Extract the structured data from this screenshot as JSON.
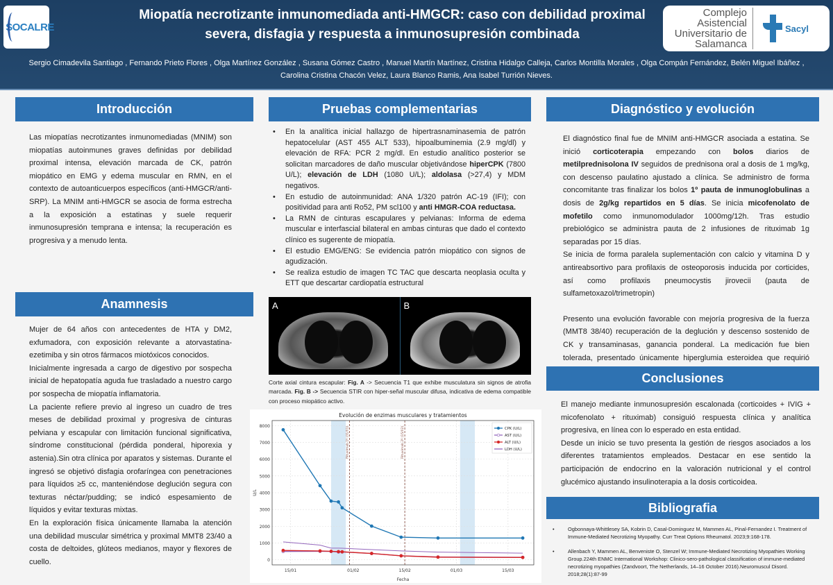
{
  "header": {
    "title": "Miopatía necrotizante inmunomediada anti-HMGCR: caso con debilidad proximal severa, disfagia y respuesta a inmunosupresión combinada",
    "authors_line1": "Sergio Cimadevila Santiago , Fernando Prieto Flores , Olga Martínez González , Susana Gómez Castro , Manuel Martín Martínez, Cristina Hidalgo Calleja, Carlos Montilla Morales , Olga Compán Fernández, Belén Miguel Ibáñez ,",
    "authors_line2": "Carolina Cristina Chacón Velez, Laura Blanco Ramis, Ana Isabel Turrión Nieves.",
    "logo_left": "SOCALRE",
    "logo_right": "Complejo Asistencial Universitario de Salamanca",
    "logo_right_brand": "Sacyl"
  },
  "colors": {
    "header_bg": "#1f4266",
    "section_bar": "#2e72b2",
    "cpk": "#1f77b4",
    "ast": "#9467bd",
    "alt": "#d62728",
    "ldh": "#9467bd",
    "shade": "#d6e8f5",
    "vline": "#8c564b"
  },
  "intro": {
    "heading": "Introducción",
    "text": "Las miopatías necrotizantes inmunomediadas (MNIM) son miopatías autoinmunes graves definidas por debilidad proximal intensa, elevación marcada de CK, patrón miopático en EMG  y edema muscular en RMN, en el contexto de autoanticuerpos específicos (anti-HMGCR/anti-SRP). La MNIM anti-HMGCR se asocia de forma estrecha a la exposición a estatinas y suele requerir inmunosupresión temprana e intensa; la recuperación es progresiva y a menudo lenta."
  },
  "anamnesis": {
    "heading": "Anamnesis",
    "paragraphs": [
      "Mujer de 64 años con antecedentes de HTA y DM2, exfumadora, con exposición relevante a atorvastatina-ezetimiba y sin otros fármacos miotóxicos conocidos.",
      "Inicialmente ingresada a cargo de digestivo por sospecha inicial de hepatopatía aguda fue trasladado a nuestro cargo por sospecha de miopatía inflamatoria.",
      "La paciente refiere previo al ingreso un cuadro de tres meses de debilidad proximal y  progresiva de cinturas pelviana y escapular con limitación funcional significativa, síndrome constitucional (pérdida ponderal, hiporexia y astenia).Sin otra clínica por aparatos y sistemas.  Durante el ingresó se objetivó disfagia orofaríngea con penetraciones para líquidos ≥5 cc, manteniéndose deglución segura con texturas néctar/pudding; se indicó espesamiento de líquidos y evitar texturas mixtas.",
      "En la exploración física únicamente llamaba la atención una debilidad muscular simétrica y proximal MMT8 23/40 a costa de deltoides, glúteos medianos, mayor y flexores de cuello."
    ]
  },
  "pruebas": {
    "heading": "Pruebas complementarias",
    "items": [
      [
        {
          "t": "En la analítica inicial hallazgo de hipertrasnaminasemia de patrón hepatocelular (AST 455 ALT 533), hipoalbuminemia  (2.9 mg/dl) y elevación de RFA: PCR 2 mg/dl. En estudio analítico posterior se solicitan marcadores de daño muscular objetivándose "
        },
        {
          "t": "hiperCPK",
          "b": true
        },
        {
          "t": " (7800 U/L); "
        },
        {
          "t": "elevación de LDH",
          "b": true
        },
        {
          "t": " (1080 U/L); "
        },
        {
          "t": "aldolasa",
          "b": true
        },
        {
          "t": " (>27,4) y MDM negativos."
        }
      ],
      [
        {
          "t": "En estudio de autoinmunidad: ANA 1/320 patrón AC-19 (IFI); con positividad para anti Ro52, PM scl100 y "
        },
        {
          "t": "anti HMGR-COA reductasa.",
          "b": true
        }
      ],
      [
        {
          "t": "La RMN de cinturas escapulares y pelvianas: Informa de edema muscular e interfascial bilateral en ambas cinturas que dado el contexto clínico es sugerente de miopatía."
        }
      ],
      [
        {
          "t": "El  estudio EMG/ENG: Se evidencia patrón miopático con signos de agudización."
        }
      ],
      [
        {
          "t": "Se realiza estudio de imagen TC TAC que descarta neoplasia oculta y ETT que descartar cardiopatía estructural"
        }
      ]
    ],
    "figure_label_a": "A",
    "figure_label_b": "B",
    "caption": [
      {
        "t": "Corte axial cintura escapular: "
      },
      {
        "t": "Fig. A",
        "b": true
      },
      {
        "t": " -> Secuencia T1 que exhibe musculatura sin signos de atrofia marcada. "
      },
      {
        "t": "Fig. B ->",
        "b": true
      },
      {
        "t": " Secuencia STIR con hiper-señal muscular difusa, indicativa de edema compatible con proceso miopático activo."
      }
    ]
  },
  "chart_data": {
    "type": "line",
    "title": "Evolución de enzimas musculares y tratamientos",
    "xlabel": "Fecha",
    "ylabel": "U/L",
    "xlim": [
      "10/01",
      "22/03"
    ],
    "ylim": [
      -300,
      8300
    ],
    "x_ticks": [
      "15/01",
      "01/02",
      "15/02",
      "01/03",
      "15/03"
    ],
    "y_ticks": [
      0,
      1000,
      2000,
      3000,
      4000,
      5000,
      6000,
      7000,
      8000
    ],
    "grid": true,
    "legend_position": "top-right",
    "x": [
      "13/01",
      "23/01",
      "26/01",
      "28/01",
      "29/01",
      "06/02",
      "14/02",
      "24/02",
      "19/03"
    ],
    "series": [
      {
        "name": "CPK (U/L)",
        "color": "#1f77b4",
        "marker": "filled-circle",
        "values": [
          7750,
          4420,
          3500,
          3450,
          3100,
          2010,
          1350,
          1300,
          1300
        ]
      },
      {
        "name": "AST (U/L)",
        "color": "#9467bd",
        "marker": "circle",
        "values": [
          500,
          510,
          500,
          470,
          470,
          380,
          240,
          170,
          150
        ]
      },
      {
        "name": "ALT (U/L)",
        "color": "#d62728",
        "marker": "filled-circle",
        "values": [
          560,
          530,
          510,
          490,
          480,
          380,
          240,
          160,
          140
        ]
      },
      {
        "name": "LDH (U/L)",
        "color": "#9467bd",
        "marker": "none",
        "values": [
          1070,
          880,
          700,
          700,
          690,
          610,
          530,
          460,
          400
        ]
      }
    ],
    "shaded_periods": [
      [
        "26/01",
        "30/01"
      ],
      [
        "02/03",
        "06/03"
      ]
    ],
    "vlines": [
      {
        "date": "31/01",
        "label": "Rituximab 1º (31/01)"
      },
      {
        "date": "15/02",
        "label": "Rituximab 2º (15/02)"
      }
    ]
  },
  "diagnostico": {
    "heading": "Diagnóstico y  evolución",
    "paragraphs": [
      [
        {
          "t": "El diagnóstico final fue de MNIM anti-HMGCR asociada a estatina. Se inició "
        },
        {
          "t": "corticoterapia",
          "b": true
        },
        {
          "t": " empezando con "
        },
        {
          "t": "bolos",
          "b": true
        },
        {
          "t": " diarios de "
        },
        {
          "t": "metilprednisolona IV",
          "b": true
        },
        {
          "t": " seguidos de prednisona oral a dosis de 1 mg/kg, con descenso paulatino ajustado a clínica. Se administro de forma concomitante tras finalizar los bolos "
        },
        {
          "t": "1º pauta de inmunoglobulinas",
          "b": true
        },
        {
          "t": " a dosis de "
        },
        {
          "t": "2g/kg repartidos en 5 días",
          "b": true
        },
        {
          "t": ". Se inicia "
        },
        {
          "t": "micofenolato de mofetilo",
          "b": true
        },
        {
          "t": " como inmunomodulador 1000mg/12h. Tras estudio prebiológico se administra pauta de 2 infusiones de rituximab 1g separadas por 15 días."
        }
      ],
      [
        {
          "t": "Se inicia de forma paralela suplementación con calcio y vitamina D y antireabsortivo para profilaxis de osteoporosis inducida por corticides, así como profilaxis pneumocystis jirovecii (pauta de sulfametoxazol/trimetropin)"
        }
      ],
      [
        {
          "t": "Presento una evolución favorable con mejoría progresiva de la fuerza (MMT8 38/40) recuperación de la deglución  y descenso sostenido de CK y transaminasas, ganancia ponderal. La medicación fue bien tolerada, presentado únicamente hiperglumia esteroidea que requirió manejo por parte de endocrinología con insulinoterapia de acción intermedia."
        }
      ]
    ]
  },
  "conclusiones": {
    "heading": "Conclusiones",
    "paragraphs": [
      "El manejo mediante inmunosupresión escalonada (corticoides + IVIG + micofenolato + rituximab) consiguió respuesta clínica y analítica progresiva, en línea con lo esperado en esta entidad.",
      "Desde un inicio se tuvo presenta la gestión de riesgos asociados a los diferentes tratamientos empleados. Destacar en ese sentido la participación de endocrino en la valoración nutricional y el control glucémico ajustando insulinoterapia a la dosis corticoidea."
    ]
  },
  "bibliografia": {
    "heading": "Bibliografia",
    "refs": [
      "Ogbonnaya-Whittlesey SA, Kobrin D, Casal-Dominguez M, Mammen AL, Pinal-Fernandez I. Treatment of Immune-Mediated Necrotizing Myopathy. Curr Treat Options Rheumatol. 2023;9:168-178.",
      "Allenbach Y, Mammen AL, Benveniste O, Stenzel W; Immune-Mediated Necrotizing Myopathies Working Group.224th ENMC International Workshop: Clinico-sero-pathological classification of immune-mediated necrotizing myopathies (Zandvoort, The Netherlands, 14–16 October 2016).Neuromuscul Disord. 2018;28(1):87-99"
    ]
  }
}
